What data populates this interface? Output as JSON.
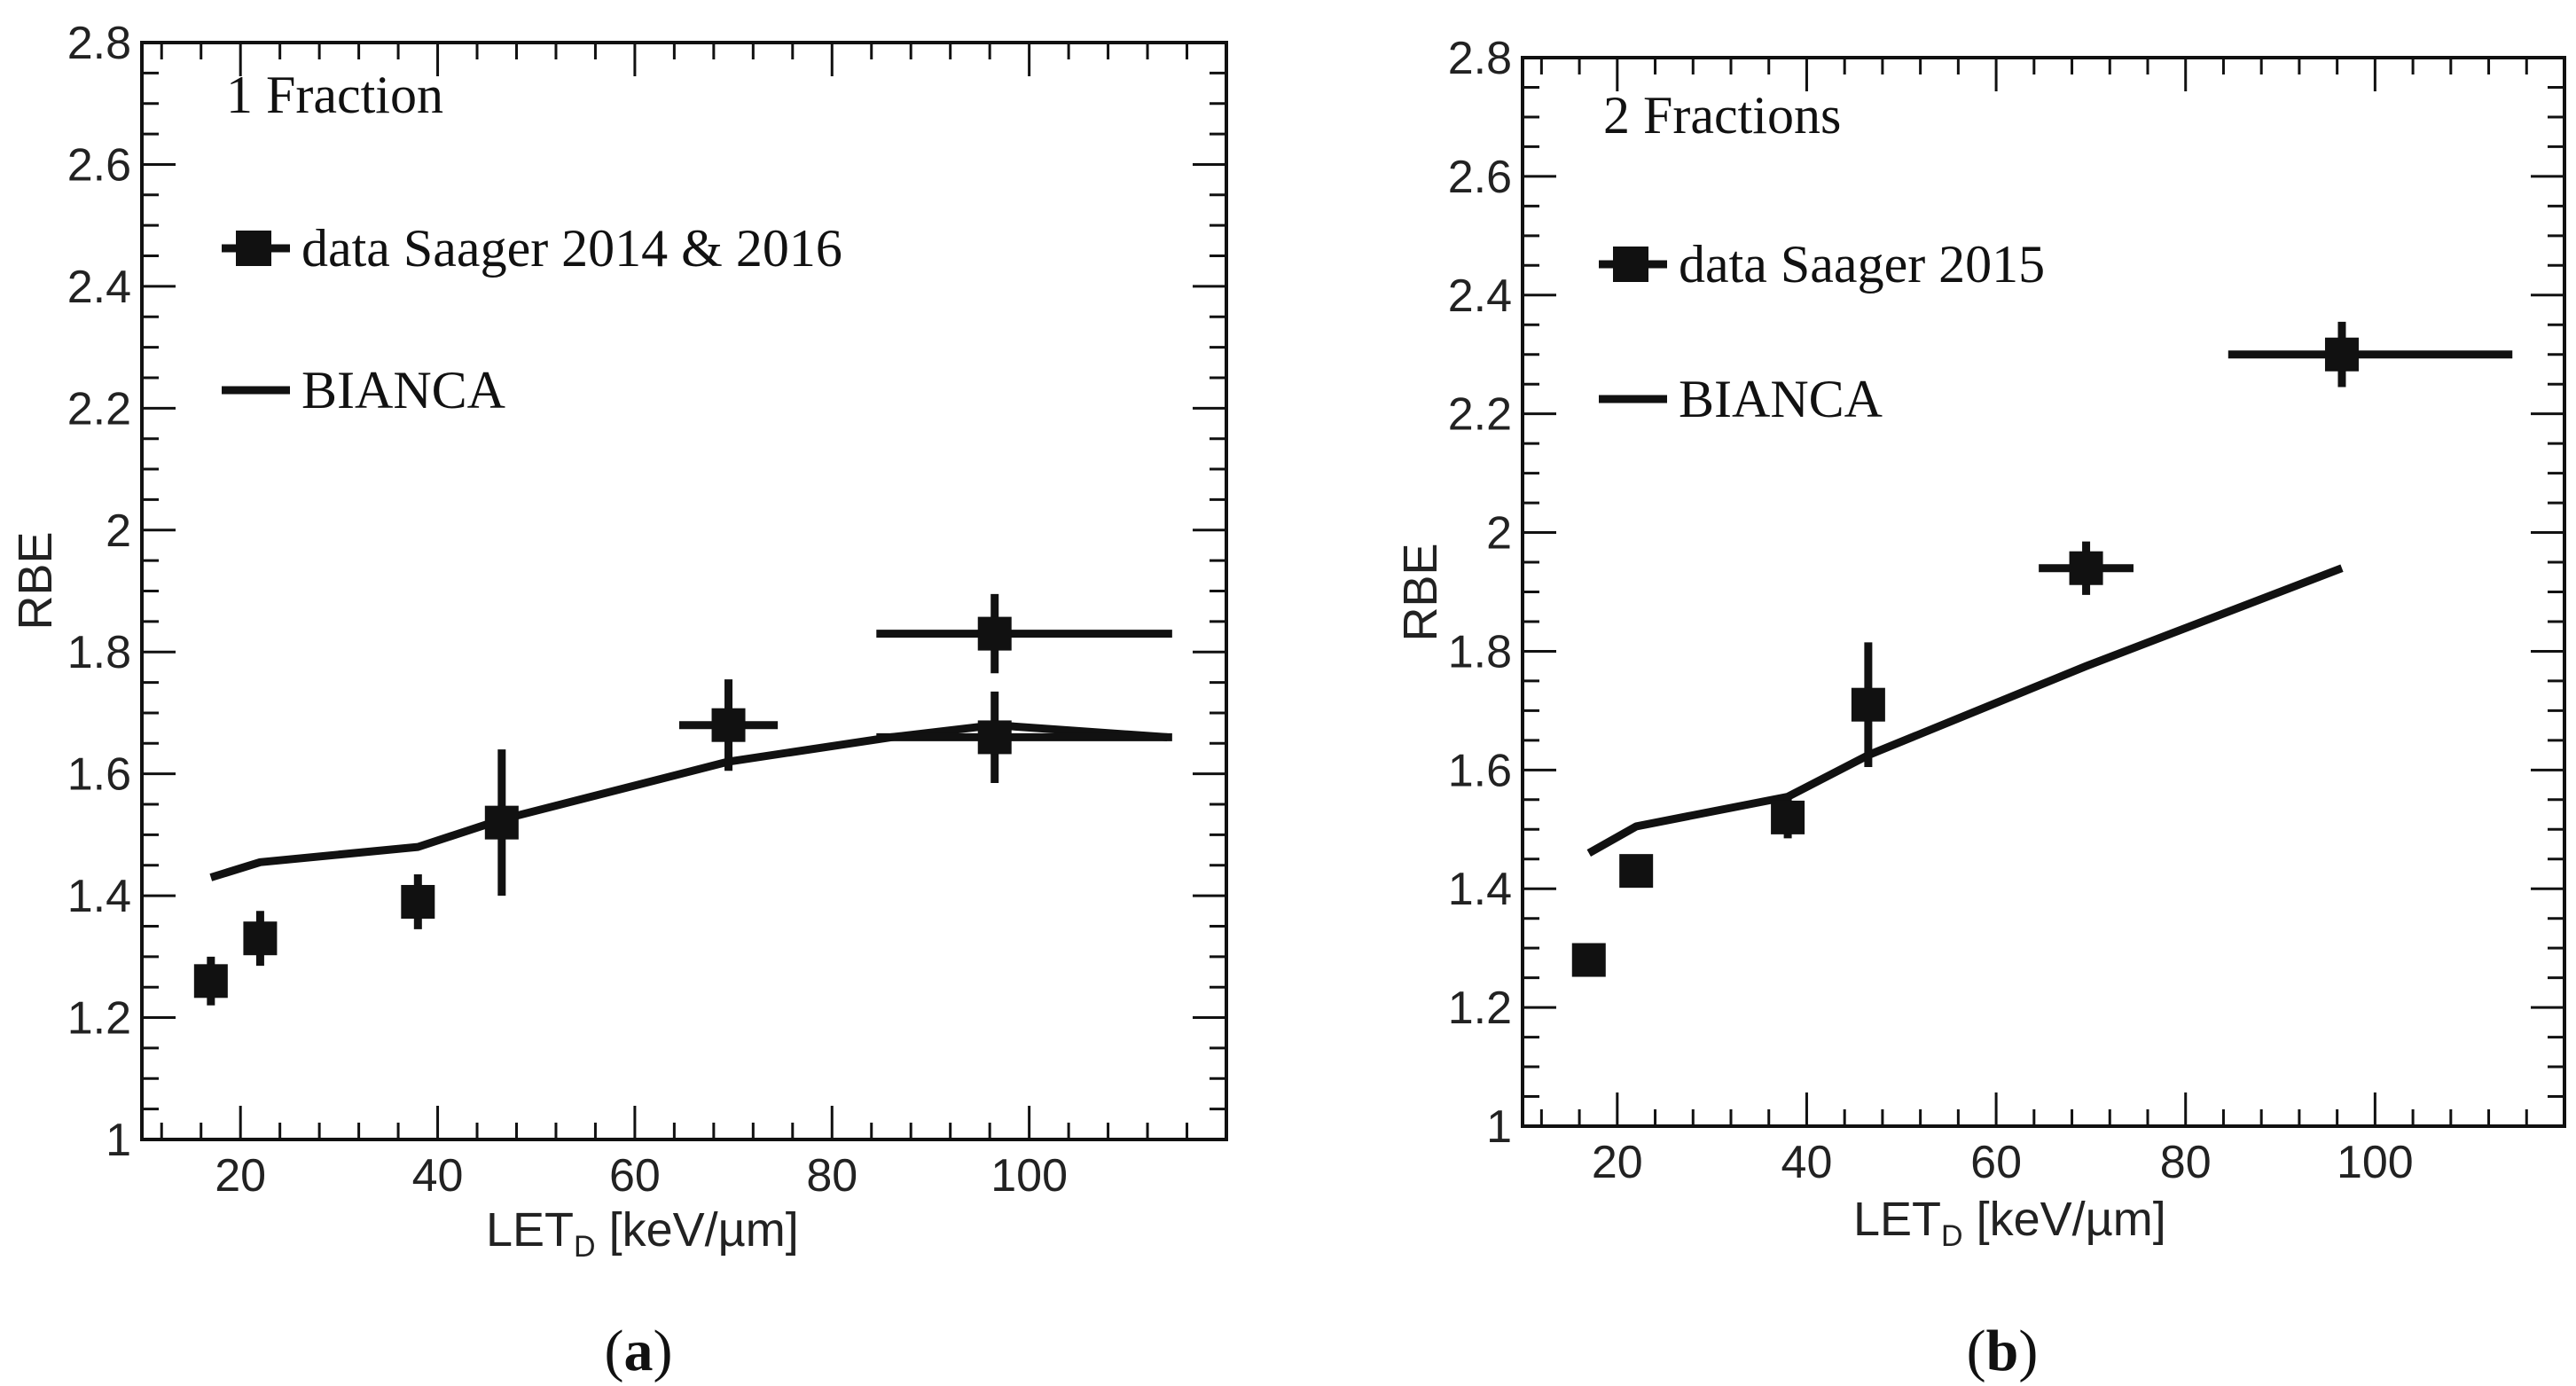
{
  "chart_data": [
    {
      "type": "scatter",
      "panel_label": "a",
      "title": "1 Fraction",
      "xlabel": "LET",
      "xlabel_subscript": "D",
      "xlabel_unit": "[keV/µm]",
      "ylabel": "RBE",
      "xlim": [
        10,
        120
      ],
      "ylim": [
        1,
        2.8
      ],
      "xticks": [
        20,
        40,
        60,
        80,
        100
      ],
      "yticks": [
        1,
        1.2,
        1.4,
        1.6,
        1.8,
        2,
        2.2,
        2.4,
        2.6,
        2.8
      ],
      "ytick_labels": [
        "1",
        "1.2",
        "1.4",
        "1.6",
        "1.8",
        "2",
        "2.2",
        "2.4",
        "2.6",
        "2.8"
      ],
      "legend": {
        "placement": "top-left",
        "data_label": "data Saager 2014 & 2016",
        "model_label": "BIANCA"
      },
      "series": [
        {
          "name": "data Saager 2014 & 2016",
          "kind": "points",
          "x": [
            17,
            22,
            38,
            46.5,
            69.5,
            96.5,
            96.5
          ],
          "y": [
            1.26,
            1.33,
            1.39,
            1.52,
            1.68,
            1.83,
            1.66
          ],
          "xerr_low": [
            0,
            0,
            0,
            0,
            5,
            12,
            12
          ],
          "xerr_high": [
            0,
            0,
            0,
            0,
            5,
            18,
            18
          ],
          "yerr": [
            0.04,
            0.045,
            0.045,
            0.12,
            0.075,
            0.065,
            0.075
          ]
        },
        {
          "name": "BIANCA",
          "kind": "line",
          "x": [
            17,
            22,
            38,
            46.5,
            69.5,
            86,
            96.5,
            114
          ],
          "y": [
            1.43,
            1.455,
            1.48,
            1.525,
            1.62,
            1.66,
            1.68,
            1.66
          ]
        }
      ]
    },
    {
      "type": "scatter",
      "panel_label": "b",
      "title": "2 Fractions",
      "xlabel": "LET",
      "xlabel_subscript": "D",
      "xlabel_unit": "[keV/µm]",
      "ylabel": "RBE",
      "xlim": [
        10,
        120
      ],
      "ylim": [
        1,
        2.8
      ],
      "xticks": [
        20,
        40,
        60,
        80,
        100
      ],
      "yticks": [
        1,
        1.2,
        1.4,
        1.6,
        1.8,
        2,
        2.2,
        2.4,
        2.6,
        2.8
      ],
      "ytick_labels": [
        "1",
        "1.2",
        "1.4",
        "1.6",
        "1.8",
        "2",
        "2.2",
        "2.4",
        "2.6",
        "2.8"
      ],
      "legend": {
        "placement": "top-left",
        "data_label": "data Saager 2015",
        "model_label": "BIANCA"
      },
      "series": [
        {
          "name": "data Saager 2015",
          "kind": "points",
          "x": [
            17,
            22,
            38,
            46.5,
            69.5,
            96.5
          ],
          "y": [
            1.28,
            1.43,
            1.52,
            1.71,
            1.94,
            2.3
          ],
          "xerr_low": [
            0,
            0,
            0,
            0,
            5,
            12
          ],
          "xerr_high": [
            0,
            0,
            0,
            0,
            5,
            18
          ],
          "yerr": [
            0.02,
            0.025,
            0.035,
            0.105,
            0.045,
            0.055
          ]
        },
        {
          "name": "BIANCA",
          "kind": "line",
          "x": [
            17,
            22,
            38,
            46.5,
            69.5,
            96.5
          ],
          "y": [
            1.46,
            1.505,
            1.555,
            1.625,
            1.775,
            1.94
          ]
        }
      ]
    }
  ]
}
